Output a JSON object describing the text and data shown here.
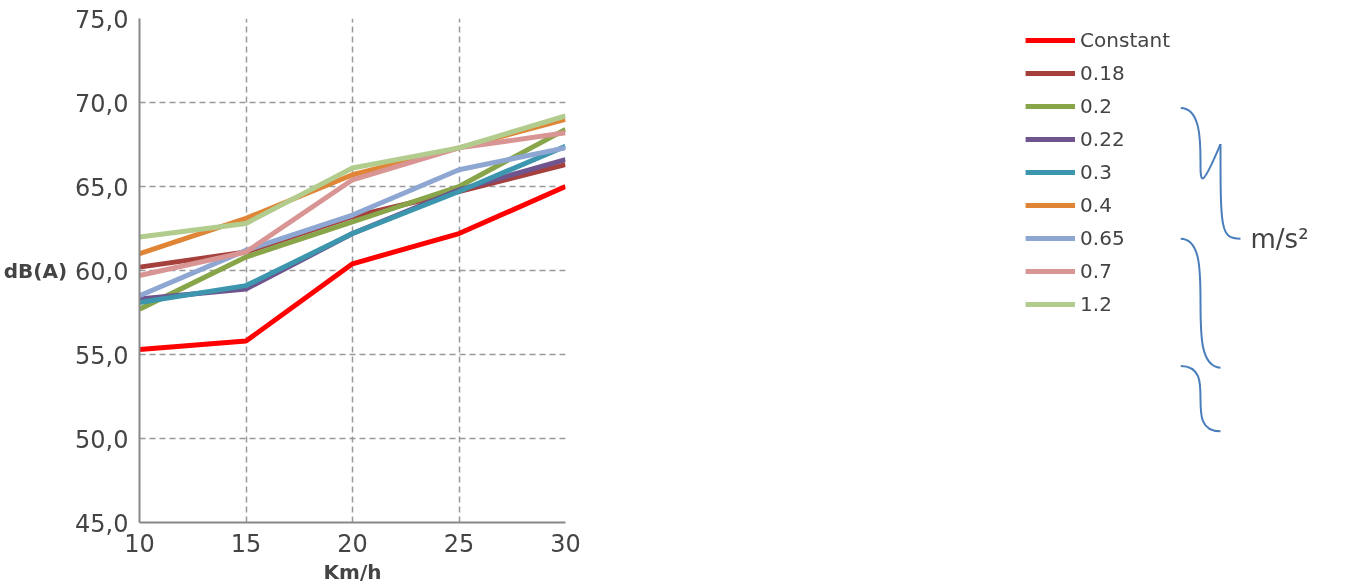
{
  "chart_data": {
    "type": "line",
    "xlabel": "Km/h",
    "ylabel": "dB(A)",
    "x": [
      10,
      15,
      20,
      25,
      30
    ],
    "xlim": [
      10,
      30
    ],
    "xticks": [
      10,
      15,
      20,
      25,
      30
    ],
    "ylim": [
      45,
      75
    ],
    "yticks": [
      {
        "value": 45,
        "label": "45,0"
      },
      {
        "value": 50,
        "label": "50,0"
      },
      {
        "value": 55,
        "label": "55,0"
      },
      {
        "value": 60,
        "label": "60,0"
      },
      {
        "value": 65,
        "label": "65,0"
      },
      {
        "value": 70,
        "label": "70,0"
      },
      {
        "value": 75,
        "label": "75,0"
      }
    ],
    "grid": true,
    "legend": "right",
    "marker": "none",
    "line_style": "solid",
    "annotations": [
      "m/s²"
    ],
    "series": [
      {
        "name": "Constant",
        "color": "#ff0000",
        "values": [
          55.3,
          55.8,
          60.4,
          62.2,
          65.0
        ]
      },
      {
        "name": "0.18",
        "color": "#a5403d",
        "values": [
          60.2,
          61.1,
          63.2,
          64.7,
          66.3
        ]
      },
      {
        "name": "0.2",
        "color": "#88a54a",
        "values": [
          57.7,
          60.8,
          62.9,
          65.0,
          68.4
        ]
      },
      {
        "name": "0.22",
        "color": "#6e558e",
        "values": [
          58.3,
          58.9,
          62.2,
          64.8,
          66.6
        ]
      },
      {
        "name": "0.3",
        "color": "#3c96ae",
        "values": [
          58.1,
          59.1,
          62.2,
          64.7,
          67.4
        ]
      },
      {
        "name": "0.4",
        "color": "#e08535",
        "values": [
          61.0,
          63.1,
          65.7,
          67.3,
          69.0
        ]
      },
      {
        "name": "0.65",
        "color": "#8ea7d2",
        "values": [
          58.5,
          61.2,
          63.3,
          66.0,
          67.3
        ]
      },
      {
        "name": "0.7",
        "color": "#d99594",
        "values": [
          59.7,
          61.1,
          65.4,
          67.3,
          68.2
        ]
      },
      {
        "name": "1.2",
        "color": "#b2cc8e",
        "values": [
          62.0,
          62.8,
          66.1,
          67.3,
          69.2
        ]
      }
    ]
  }
}
